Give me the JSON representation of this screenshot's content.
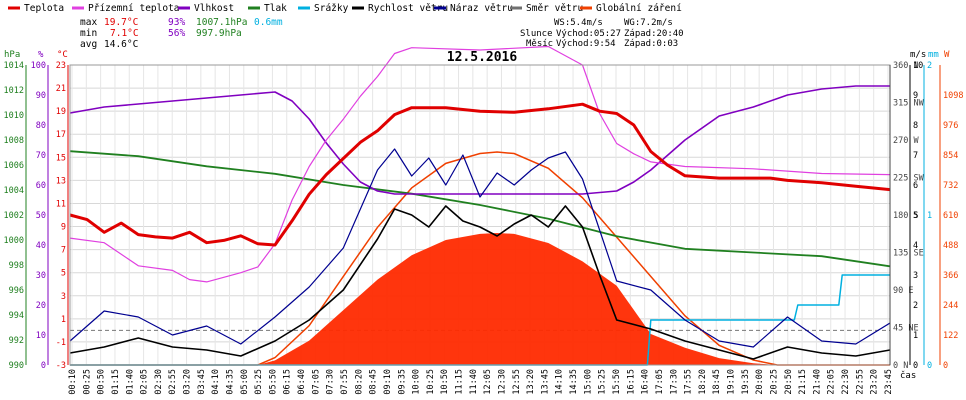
{
  "title": "12.5.2016",
  "legend": [
    {
      "label": "Teplota",
      "color": "#e00000"
    },
    {
      "label": "Přízemní teplota",
      "color": "#e040e0"
    },
    {
      "label": "Vlhkost",
      "color": "#8000c0"
    },
    {
      "label": "Tlak",
      "color": "#208020"
    },
    {
      "label": "Srážky",
      "color": "#00b0e0"
    },
    {
      "label": "Rychlost větru",
      "color": "#000000"
    },
    {
      "label": "Náraz větru",
      "color": "#000090"
    },
    {
      "label": "Směr větru",
      "color": "#707070"
    },
    {
      "label": "Globální záření",
      "color": "#f04000"
    }
  ],
  "stats": {
    "max_label": "max",
    "max_temp": "19.7°C",
    "max_hum": "93%",
    "max_press": "1007.1hPa",
    "max_rain": "0.6mm",
    "min_label": "min",
    "min_temp": "7.1°C",
    "min_hum": "56%",
    "min_press": "997.9hPa",
    "avg_label": "avg",
    "avg_temp": "14.6°C"
  },
  "info": {
    "ws": "WS:5.4m/s",
    "wg": "WG:7.2m/s",
    "sun_label": "Slunce",
    "sun_rise": "Východ:05:27",
    "sun_set": "Západ:20:40",
    "moon_label": "Měsíc",
    "moon_rise": "Východ:9:54",
    "moon_set": "Západ:0:03"
  },
  "axis_units": {
    "hpa": "hPa",
    "pct": "%",
    "degc": "°C",
    "ms": "m/s",
    "mm": "mm",
    "w": "W",
    "xlabel": "čas"
  },
  "colors": {
    "temp": "#e00000",
    "ground": "#e040e0",
    "hum": "#8000c0",
    "press": "#208020",
    "rain": "#00b0e0",
    "wind": "#000000",
    "gust": "#000090",
    "dir": "#707070",
    "rad": "#f04000",
    "radfill": "#ff2a00"
  },
  "chart_data": {
    "type": "line",
    "x_unit": "hours",
    "x_ticks": [
      "00:10",
      "00:25",
      "00:50",
      "01:15",
      "01:40",
      "02:05",
      "02:30",
      "02:55",
      "03:20",
      "03:45",
      "04:10",
      "04:35",
      "05:00",
      "05:25",
      "05:50",
      "06:15",
      "06:40",
      "07:05",
      "07:30",
      "07:55",
      "08:20",
      "08:45",
      "09:10",
      "09:35",
      "10:00",
      "10:25",
      "10:50",
      "11:15",
      "11:40",
      "12:05",
      "12:30",
      "12:55",
      "13:20",
      "13:45",
      "14:10",
      "14:35",
      "15:00",
      "15:25",
      "15:50",
      "16:15",
      "16:40",
      "17:05",
      "17:30",
      "17:55",
      "18:20",
      "18:45",
      "19:10",
      "19:35",
      "20:00",
      "20:25",
      "20:50",
      "21:15",
      "21:40",
      "22:05",
      "22:30",
      "22:55",
      "23:20",
      "23:45"
    ],
    "axes": {
      "pressure_hPa": {
        "min": 990,
        "max": 1014,
        "ticks": [
          "1014",
          "1012",
          "1010",
          "1008",
          "1006",
          "1004",
          "1002",
          "1000",
          "998",
          "996",
          "994",
          "992",
          "990"
        ]
      },
      "humidity_pct": {
        "min": 0,
        "max": 100,
        "ticks": [
          "100",
          "90",
          "80",
          "70",
          "60",
          "50",
          "40",
          "30",
          "20",
          "10",
          "0"
        ]
      },
      "temperature_C": {
        "min": -3,
        "max": 23,
        "ticks": [
          "23",
          "21",
          "19",
          "17",
          "15",
          "13",
          "11",
          "9",
          "7",
          "5",
          "3",
          "1",
          "-1",
          "-3"
        ]
      },
      "wind_direction": {
        "ticks": [
          "360 N",
          "315 NW",
          "270 W",
          "225 SW",
          "180 S",
          "135 SE",
          "90 E",
          "45 NE",
          "0 N"
        ]
      },
      "wind_ms": {
        "min": 0,
        "max": 10,
        "ticks": [
          "10",
          "9",
          "8",
          "7",
          "6",
          "5",
          "4",
          "3",
          "2",
          "1",
          "0"
        ]
      },
      "rain_mm": {
        "min": 0,
        "max": 2,
        "ticks": [
          "2",
          "1",
          "0"
        ]
      },
      "radiation_W": {
        "min": 0,
        "max": 1220,
        "ticks": [
          "1098",
          "976",
          "854",
          "732",
          "610",
          "488",
          "366",
          "244",
          "122",
          "0"
        ]
      }
    },
    "series": [
      {
        "name": "Teplota",
        "unit": "°C",
        "x": [
          0,
          0.5,
          1,
          1.5,
          2,
          2.5,
          3,
          3.5,
          4,
          4.5,
          5,
          5.5,
          6,
          6.5,
          7,
          7.5,
          8,
          8.5,
          9,
          9.5,
          10,
          11,
          12,
          13,
          14,
          15,
          15.5,
          16,
          16.5,
          17,
          17.5,
          18,
          19,
          20,
          20.5,
          21,
          22,
          23,
          24
        ],
        "values": [
          10,
          9.6,
          8.5,
          9.3,
          8.3,
          8.1,
          8,
          8.5,
          7.6,
          7.8,
          8.2,
          7.5,
          7.4,
          9.5,
          11.8,
          13.5,
          14.9,
          16.3,
          17.3,
          18.7,
          19.3,
          19.3,
          19,
          18.9,
          19.2,
          19.6,
          19,
          18.8,
          17.8,
          15.5,
          14.3,
          13.4,
          13.2,
          13.2,
          13.2,
          13,
          12.8,
          12.5,
          12.2
        ]
      },
      {
        "name": "Přízemní teplota",
        "unit": "°C",
        "x": [
          0,
          1,
          2,
          3,
          3.5,
          4,
          4.5,
          5,
          5.5,
          6,
          6.5,
          7,
          7.5,
          8,
          8.5,
          9,
          9.5,
          10,
          12,
          14,
          15,
          15.5,
          16,
          16.5,
          17,
          18,
          20,
          22,
          24
        ],
        "values": [
          8,
          7.6,
          5.6,
          5.2,
          4.4,
          4.2,
          4.6,
          5,
          5.5,
          7.5,
          11.3,
          14.2,
          16.5,
          18.3,
          20.3,
          22,
          24,
          24.5,
          24.3,
          24.6,
          23,
          18.8,
          16.2,
          15.3,
          14.6,
          14.2,
          14,
          13.6,
          13.5
        ]
      },
      {
        "name": "Vlhkost",
        "unit": "%",
        "x": [
          0,
          1,
          2,
          3,
          4,
          5,
          6,
          6.5,
          7,
          7.5,
          8,
          8.5,
          9,
          9.5,
          10,
          12,
          14,
          15,
          16,
          16.5,
          17,
          17.5,
          18,
          19,
          20,
          21,
          22,
          23,
          24
        ],
        "values": [
          84,
          86,
          87,
          88,
          89,
          90,
          91,
          88,
          82,
          74,
          67,
          61,
          58,
          57,
          57,
          57,
          57,
          57,
          58,
          61,
          65,
          70,
          75,
          83,
          86,
          90,
          92,
          93,
          93
        ]
      },
      {
        "name": "Tlak",
        "unit": "hPa",
        "x": [
          0,
          2,
          4,
          6,
          8,
          10,
          12,
          14,
          16,
          18,
          20,
          22,
          24
        ],
        "values": [
          1007.1,
          1006.7,
          1005.9,
          1005.3,
          1004.4,
          1003.7,
          1002.8,
          1001.7,
          1000.3,
          999.3,
          999,
          998.7,
          997.9
        ]
      },
      {
        "name": "Srážky",
        "unit": "mm",
        "x": [
          0,
          16.9,
          17,
          21.2,
          21.3,
          22.5,
          22.6,
          24
        ],
        "values": [
          0,
          0,
          0.3,
          0.3,
          0.4,
          0.4,
          0.6,
          0.6
        ]
      },
      {
        "name": "Rychlost větru",
        "unit": "m/s",
        "x": [
          0,
          1,
          2,
          3,
          4,
          5,
          6,
          7,
          8,
          9,
          9.5,
          10,
          10.5,
          11,
          11.5,
          12,
          12.5,
          13,
          13.5,
          14,
          14.5,
          15,
          15.5,
          16,
          17,
          18,
          19,
          20,
          21,
          22,
          23,
          24
        ],
        "values": [
          0.4,
          0.6,
          0.9,
          0.6,
          0.5,
          0.3,
          0.8,
          1.5,
          2.5,
          4.2,
          5.2,
          5,
          4.6,
          5.3,
          4.8,
          4.6,
          4.3,
          4.7,
          5,
          4.6,
          5.3,
          4.6,
          3,
          1.5,
          1.2,
          0.8,
          0.5,
          0.2,
          0.6,
          0.4,
          0.3,
          0.5
        ]
      },
      {
        "name": "Náraz větru",
        "unit": "m/s",
        "x": [
          0,
          1,
          2,
          3,
          4,
          5,
          6,
          7,
          8,
          9,
          9.5,
          10,
          10.5,
          11,
          11.5,
          12,
          12.5,
          13,
          13.5,
          14,
          14.5,
          15,
          15.5,
          16,
          17,
          18,
          19,
          20,
          21,
          22,
          23,
          24
        ],
        "values": [
          0.8,
          1.8,
          1.6,
          1,
          1.3,
          0.7,
          1.6,
          2.6,
          3.9,
          6.5,
          7.2,
          6.3,
          6.9,
          6,
          7,
          5.6,
          6.4,
          6,
          6.5,
          6.9,
          7.1,
          6.2,
          4.5,
          2.8,
          2.5,
          1.5,
          0.8,
          0.6,
          1.6,
          0.8,
          0.7,
          1.4
        ]
      },
      {
        "name": "Globální záření",
        "unit": "W",
        "x": [
          0,
          5.5,
          6,
          7,
          8,
          9,
          10,
          11,
          12,
          12.5,
          13,
          14,
          15,
          16,
          17,
          18,
          19,
          20,
          20.7,
          24
        ],
        "values": [
          0,
          0,
          30,
          160,
          360,
          560,
          720,
          820,
          860,
          866,
          860,
          800,
          680,
          520,
          360,
          200,
          80,
          20,
          0,
          0
        ]
      }
    ]
  }
}
